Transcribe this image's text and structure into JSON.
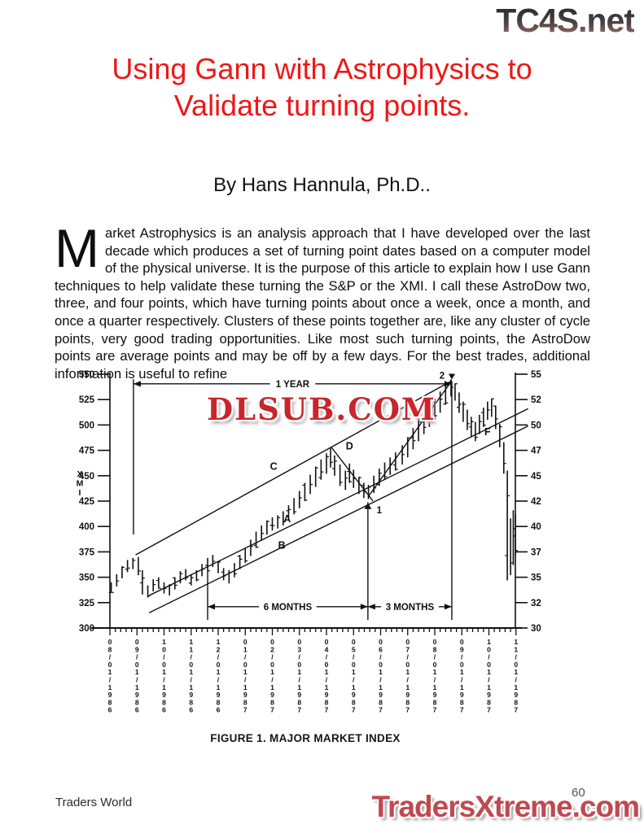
{
  "page": {
    "header_logo": "TC4S.net",
    "title_line1": "Using Gann with Astrophysics to",
    "title_line2": "Validate turning points.",
    "byline": "By Hans Hannula, Ph.D..",
    "body_dropcap": "M",
    "body_text": "arket Astrophysics is an analysis approach that I have developed over the last decade which produces a set of turning point dates based on a computer model of the physical universe. It is the purpose of this article to explain how I use Gann techniques to help validate these turning the S&P or the XMI. I call these AstroDow two, three, and four points, which have turning points about once a week, once a month, and once a quarter respectively. Clusters of these points together are, like any cluster of cycle points, very good trading opportunities. Like most such turning points, the AstroDow points are average points and may be off by a few days. For the best trades, additional information is useful to refine",
    "watermark": "DLSUB.COM",
    "figure_caption": "FIGURE 1.  MAJOR MARKET INDEX",
    "footer_left": "Traders World",
    "page_number": "60",
    "footer_logo": "TradersXtreme.com"
  },
  "colors": {
    "title_red": "#ee1717",
    "watermark_red": "#c8262c",
    "footer_logo_red": "#c24850",
    "header_logo_top": "#2f2f31",
    "header_logo_bottom": "#9c6c63",
    "ink": "#111111"
  },
  "chart_data": {
    "type": "bar",
    "title": "FIGURE 1. MAJOR MARKET INDEX",
    "ylabel": "XMI",
    "ylim": [
      300,
      550
    ],
    "yticks": [
      550,
      525,
      500,
      475,
      450,
      425,
      400,
      375,
      350,
      325,
      300
    ],
    "x_labels": [
      "08/01/1986",
      "09/01/1986",
      "10/01/1986",
      "11/01/1986",
      "12/01/1986",
      "01/01/1987",
      "02/01/1987",
      "03/01/1987",
      "04/01/1987",
      "05/01/1987",
      "06/01/1987",
      "07/01/1987",
      "08/01/1987",
      "09/01/1987",
      "10/01/1987",
      "11/01/1987"
    ],
    "bars": [
      [
        0.05,
        335,
        345
      ],
      [
        0.25,
        341,
        353
      ],
      [
        0.45,
        349,
        361
      ],
      [
        0.65,
        355,
        367
      ],
      [
        0.85,
        358,
        369
      ],
      [
        1.05,
        352,
        370
      ],
      [
        1.2,
        333,
        357
      ],
      [
        1.4,
        330,
        342
      ],
      [
        1.6,
        336,
        348
      ],
      [
        1.8,
        339,
        350
      ],
      [
        2.0,
        334,
        345
      ],
      [
        2.2,
        332,
        343
      ],
      [
        2.4,
        338,
        350
      ],
      [
        2.6,
        344,
        356
      ],
      [
        2.8,
        347,
        358
      ],
      [
        3.0,
        342,
        353
      ],
      [
        3.2,
        346,
        357
      ],
      [
        3.4,
        351,
        363
      ],
      [
        3.61,
        356,
        369
      ],
      [
        3.8,
        360,
        372
      ],
      [
        4.0,
        354,
        366
      ],
      [
        4.2,
        347,
        359
      ],
      [
        4.4,
        344,
        357
      ],
      [
        4.6,
        350,
        364
      ],
      [
        4.8,
        358,
        372
      ],
      [
        5.0,
        364,
        379
      ],
      [
        5.2,
        371,
        387
      ],
      [
        5.4,
        379,
        395
      ],
      [
        5.6,
        386,
        401
      ],
      [
        5.8,
        392,
        406
      ],
      [
        6.0,
        396,
        409
      ],
      [
        6.2,
        398,
        411
      ],
      [
        6.4,
        401,
        415
      ],
      [
        6.6,
        406,
        421
      ],
      [
        6.8,
        412,
        428
      ],
      [
        7.0,
        418,
        435
      ],
      [
        7.2,
        425,
        443
      ],
      [
        7.4,
        432,
        451
      ],
      [
        7.6,
        439,
        459
      ],
      [
        7.8,
        446,
        466
      ],
      [
        8.0,
        452,
        472
      ],
      [
        8.15,
        458,
        477
      ],
      [
        8.3,
        450,
        470
      ],
      [
        8.5,
        440,
        461
      ],
      [
        8.7,
        436,
        455
      ],
      [
        8.85,
        443,
        462
      ],
      [
        9.0,
        438,
        456
      ],
      [
        9.2,
        432,
        449
      ],
      [
        9.38,
        428,
        443
      ],
      [
        9.55,
        427,
        441
      ],
      [
        9.75,
        433,
        450
      ],
      [
        9.95,
        440,
        457
      ],
      [
        10.15,
        446,
        463
      ],
      [
        10.35,
        451,
        468
      ],
      [
        10.55,
        455,
        473
      ],
      [
        10.8,
        461,
        480
      ],
      [
        11.0,
        468,
        488
      ],
      [
        11.2,
        476,
        497
      ],
      [
        11.4,
        484,
        506
      ],
      [
        11.6,
        491,
        513
      ],
      [
        11.8,
        498,
        519
      ],
      [
        12.0,
        505,
        526
      ],
      [
        12.2,
        512,
        533
      ],
      [
        12.4,
        520,
        540
      ],
      [
        12.6,
        528,
        545
      ],
      [
        12.75,
        524,
        541
      ],
      [
        12.9,
        512,
        532
      ],
      [
        13.05,
        503,
        523
      ],
      [
        13.2,
        495,
        515
      ],
      [
        13.35,
        488,
        508
      ],
      [
        13.5,
        484,
        503
      ],
      [
        13.65,
        491,
        510
      ],
      [
        13.8,
        498,
        517
      ],
      [
        13.95,
        505,
        523
      ],
      [
        14.1,
        508,
        526
      ],
      [
        14.25,
        496,
        519
      ],
      [
        14.4,
        478,
        501
      ],
      [
        14.55,
        452,
        483
      ],
      [
        14.68,
        347,
        455
      ],
      [
        14.8,
        352,
        408
      ],
      [
        14.9,
        362,
        416
      ],
      [
        14.98,
        372,
        412
      ]
    ],
    "trendlines": [
      {
        "name": "C",
        "m1": 0.95,
        "v1": 372,
        "m2": 12.63,
        "v2": 543.5
      },
      {
        "name": "A",
        "m1": 1.45,
        "v1": 332,
        "m2": 15.45,
        "v2": 516
      },
      {
        "name": "B",
        "m1": 1.45,
        "v1": 315,
        "m2": 15.45,
        "v2": 499
      },
      {
        "name": "D",
        "m1": 8.18,
        "v1": 478,
        "m2": 9.72,
        "v2": 425
      },
      {
        "name": "rally-1-to-2",
        "m1": 9.53,
        "v1": 429,
        "m2": 12.63,
        "v2": 543.5
      }
    ],
    "verticals": [
      {
        "mo": 0.87,
        "v1": 545,
        "v2": 392
      },
      {
        "mo": 3.61,
        "v1": 356,
        "v2": 308
      },
      {
        "mo": 9.53,
        "v1": 424,
        "v2": 308
      },
      {
        "mo": 12.63,
        "v1": 543,
        "v2": 308
      }
    ],
    "arrows": [
      {
        "label": "1 YEAR",
        "m1": 0.87,
        "m2": 12.63,
        "v": 540.5
      },
      {
        "label": "6 MONTHS",
        "m1": 3.61,
        "m2": 9.53,
        "v": 321
      },
      {
        "label": "3 MONTHS",
        "m1": 9.53,
        "m2": 12.63,
        "v": 321
      }
    ],
    "letters": [
      {
        "t": "C",
        "mo": 6.05,
        "v": 456
      },
      {
        "t": "A",
        "mo": 6.55,
        "v": 404
      },
      {
        "t": "B",
        "mo": 6.35,
        "v": 378
      },
      {
        "t": "D",
        "mo": 8.85,
        "v": 476
      },
      {
        "t": "F",
        "mo": 13.95,
        "v": 490
      }
    ],
    "markers": {
      "peak_label": "2",
      "peak_mo": 12.63,
      "peak_v": 548,
      "low_label": "1",
      "low_mo": 9.53,
      "low_v": 420
    }
  }
}
